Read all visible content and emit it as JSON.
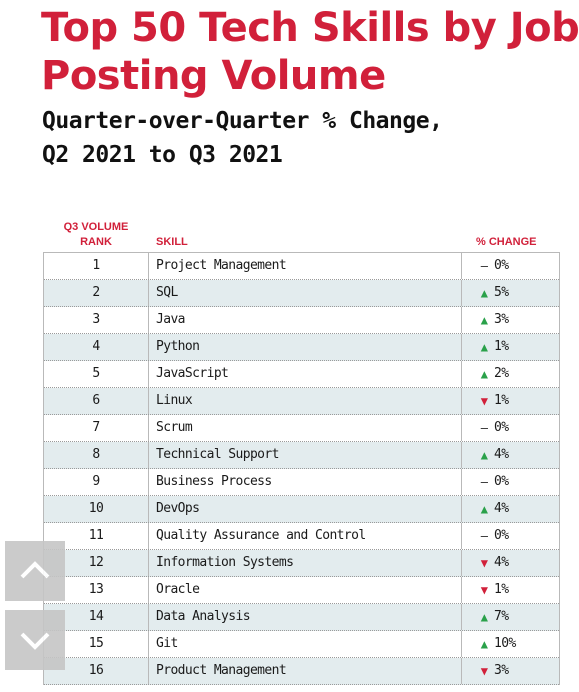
{
  "colors": {
    "accent": "#d1203a",
    "up": "#2aa14a",
    "down": "#d1203a",
    "band": "#e3ecee"
  },
  "chart_data": {
    "type": "table",
    "title_line1": "Top 50 Tech Skills by Job",
    "title_line2": "Posting Volume",
    "subtitle_line1": "Quarter-over-Quarter % Change,",
    "subtitle_line2": "Q2 2021 to Q3 2021",
    "columns": {
      "rank_line1": "Q3 VOLUME",
      "rank_line2": "RANK",
      "skill": "SKILL",
      "change": "% CHANGE"
    },
    "rows": [
      {
        "rank": "1",
        "skill": "Project Management",
        "direction": "none",
        "change": "0%"
      },
      {
        "rank": "2",
        "skill": "SQL",
        "direction": "up",
        "change": "5%"
      },
      {
        "rank": "3",
        "skill": "Java",
        "direction": "up",
        "change": "3%"
      },
      {
        "rank": "4",
        "skill": "Python",
        "direction": "up",
        "change": "1%"
      },
      {
        "rank": "5",
        "skill": "JavaScript",
        "direction": "up",
        "change": "2%"
      },
      {
        "rank": "6",
        "skill": "Linux",
        "direction": "down",
        "change": "1%"
      },
      {
        "rank": "7",
        "skill": "Scrum",
        "direction": "none",
        "change": "0%"
      },
      {
        "rank": "8",
        "skill": "Technical Support",
        "direction": "up",
        "change": "4%"
      },
      {
        "rank": "9",
        "skill": "Business Process",
        "direction": "none",
        "change": "0%"
      },
      {
        "rank": "10",
        "skill": "DevOps",
        "direction": "up",
        "change": "4%"
      },
      {
        "rank": "11",
        "skill": "Quality Assurance and Control",
        "direction": "none",
        "change": "0%"
      },
      {
        "rank": "12",
        "skill": "Information Systems",
        "direction": "down",
        "change": "4%"
      },
      {
        "rank": "13",
        "skill": "Oracle",
        "direction": "down",
        "change": "1%"
      },
      {
        "rank": "14",
        "skill": "Data Analysis",
        "direction": "up",
        "change": "7%"
      },
      {
        "rank": "15",
        "skill": "Git",
        "direction": "up",
        "change": "10%"
      },
      {
        "rank": "16",
        "skill": "Product Management",
        "direction": "down",
        "change": "3%"
      }
    ]
  }
}
